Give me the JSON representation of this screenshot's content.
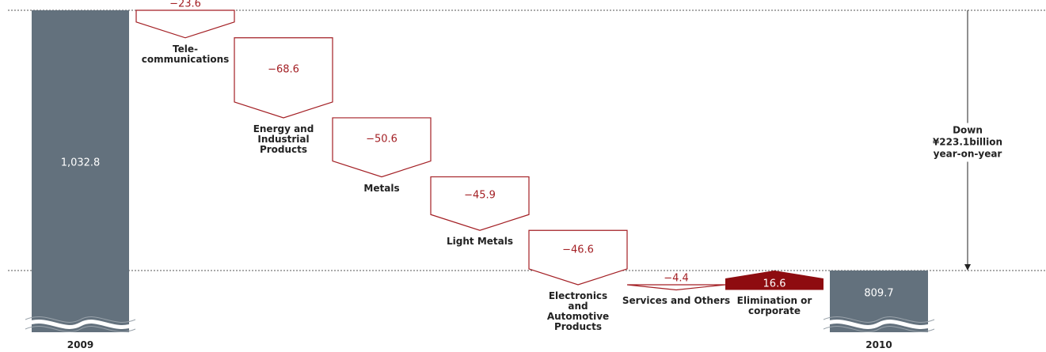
{
  "chart_data": {
    "type": "waterfall",
    "categories": [
      "2009",
      "Tele-\ncommunications",
      "Energy and\nIndustrial\nProducts",
      "Metals",
      "Light Metals",
      "Electronics\nand\nAutomotive\nProducts",
      "Services and Others",
      "Elimination or\ncorporate",
      "2010"
    ],
    "values": [
      1032.8,
      -23.6,
      -68.6,
      -50.6,
      -45.9,
      -46.6,
      -4.4,
      16.6,
      809.7
    ],
    "value_labels": [
      "1,032.8",
      "−23.6",
      "−68.6",
      "−50.6",
      "−45.9",
      "−46.6",
      "−4.4",
      "16.6",
      "809.7"
    ],
    "ylim": [
      756.8,
      1041.6
    ],
    "total_color": "#63717d",
    "decrease_color": "#a31f24",
    "increase_color": "#8e0c10",
    "annotation": "Down ¥223.1billion\nyear-on-year"
  }
}
